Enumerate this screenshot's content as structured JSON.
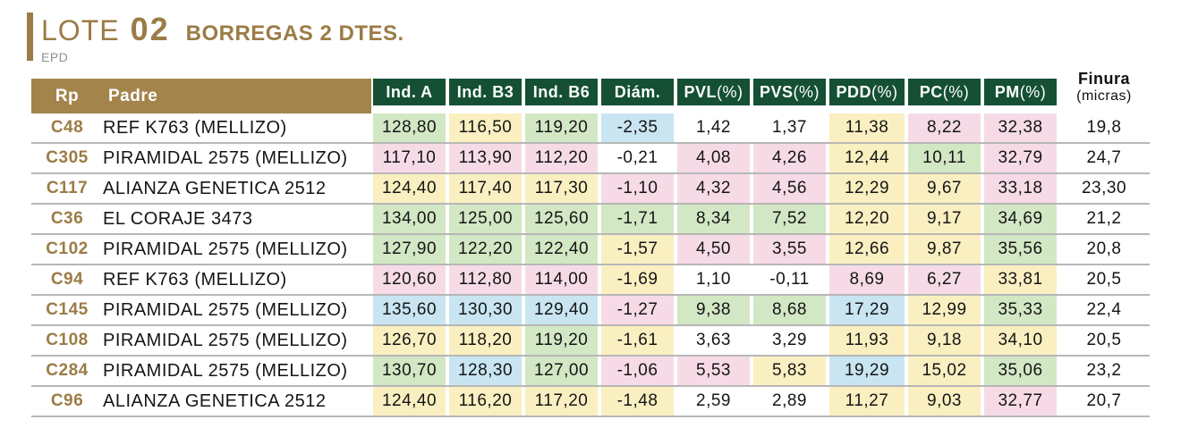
{
  "title": {
    "lote_label": "LOTE",
    "lote_number": "02",
    "subtitle": "BORREGAS 2 DTES.",
    "epd_label": "EPD"
  },
  "colors": {
    "bronze": "#9b7c46",
    "gold_header": "#a3854c",
    "dark_green_header": "#155034",
    "cell_green": "#d2e7c4",
    "cell_yellow": "#faefc1",
    "cell_pink": "#f6dbe7",
    "cell_blue": "#c8e5f1",
    "row_line": "#b7b7b7"
  },
  "table": {
    "headers": {
      "rp": "Rp",
      "padre": "Padre",
      "cols": [
        {
          "t": "Ind. A",
          "s": ""
        },
        {
          "t": "Ind. B3",
          "s": ""
        },
        {
          "t": "Ind. B6",
          "s": ""
        },
        {
          "t": "Diám.",
          "s": ""
        },
        {
          "t": "PVL",
          "s": "(%)"
        },
        {
          "t": "PVS",
          "s": "(%)"
        },
        {
          "t": "PDD",
          "s": "(%)"
        },
        {
          "t": "PC",
          "s": "(%)"
        },
        {
          "t": "PM",
          "s": "(%)"
        }
      ],
      "finura_line1": "Finura",
      "finura_line2": "(micras)"
    },
    "rows": [
      {
        "rp": "C48",
        "padre": "REF K763 (MELLIZO)",
        "values": [
          "128,80",
          "116,50",
          "119,20",
          "-2,35",
          "1,42",
          "1,37",
          "11,38",
          "8,22",
          "32,38"
        ],
        "colors": [
          "g",
          "y",
          "g",
          "b",
          "w",
          "w",
          "y",
          "p",
          "p"
        ],
        "finura": "19,8"
      },
      {
        "rp": "C305",
        "padre": "PIRAMIDAL 2575 (MELLIZO)",
        "values": [
          "117,10",
          "113,90",
          "112,20",
          "-0,21",
          "4,08",
          "4,26",
          "12,44",
          "10,11",
          "32,79"
        ],
        "colors": [
          "p",
          "p",
          "p",
          "w",
          "p",
          "p",
          "y",
          "g",
          "p"
        ],
        "finura": "24,7"
      },
      {
        "rp": "C117",
        "padre": "ALIANZA GENETICA 2512",
        "values": [
          "124,40",
          "117,40",
          "117,30",
          "-1,10",
          "4,32",
          "4,56",
          "12,29",
          "9,67",
          "33,18"
        ],
        "colors": [
          "y",
          "y",
          "y",
          "p",
          "p",
          "p",
          "y",
          "y",
          "p"
        ],
        "finura": "23,30"
      },
      {
        "rp": "C36",
        "padre": "EL CORAJE 3473",
        "values": [
          "134,00",
          "125,00",
          "125,60",
          "-1,71",
          "8,34",
          "7,52",
          "12,20",
          "9,17",
          "34,69"
        ],
        "colors": [
          "g",
          "g",
          "g",
          "g",
          "g",
          "g",
          "y",
          "y",
          "g"
        ],
        "finura": "21,2"
      },
      {
        "rp": "C102",
        "padre": "PIRAMIDAL 2575 (MELLIZO)",
        "values": [
          "127,90",
          "122,20",
          "122,40",
          "-1,57",
          "4,50",
          "3,55",
          "12,66",
          "9,87",
          "35,56"
        ],
        "colors": [
          "g",
          "g",
          "g",
          "y",
          "p",
          "p",
          "y",
          "y",
          "g"
        ],
        "finura": "20,8"
      },
      {
        "rp": "C94",
        "padre": "REF K763 (MELLIZO)",
        "values": [
          "120,60",
          "112,80",
          "114,00",
          "-1,69",
          "1,10",
          "-0,11",
          "8,69",
          "6,27",
          "33,81"
        ],
        "colors": [
          "p",
          "p",
          "p",
          "y",
          "w",
          "w",
          "p",
          "p",
          "y"
        ],
        "finura": "20,5"
      },
      {
        "rp": "C145",
        "padre": "PIRAMIDAL 2575 (MELLIZO)",
        "values": [
          "135,60",
          "130,30",
          "129,40",
          "-1,27",
          "9,38",
          "8,68",
          "17,29",
          "12,99",
          "35,33"
        ],
        "colors": [
          "b",
          "b",
          "b",
          "p",
          "g",
          "g",
          "b",
          "y",
          "g"
        ],
        "finura": "22,4"
      },
      {
        "rp": "C108",
        "padre": "PIRAMIDAL 2575 (MELLIZO)",
        "values": [
          "126,70",
          "118,20",
          "119,20",
          "-1,61",
          "3,63",
          "3,29",
          "11,93",
          "9,18",
          "34,10"
        ],
        "colors": [
          "y",
          "y",
          "g",
          "y",
          "w",
          "w",
          "y",
          "y",
          "y"
        ],
        "finura": "20,5"
      },
      {
        "rp": "C284",
        "padre": "PIRAMIDAL 2575 (MELLIZO)",
        "values": [
          "130,70",
          "128,30",
          "127,00",
          "-1,06",
          "5,53",
          "5,83",
          "19,29",
          "15,02",
          "35,06"
        ],
        "colors": [
          "g",
          "b",
          "g",
          "p",
          "p",
          "y",
          "b",
          "y",
          "g"
        ],
        "finura": "23,2"
      },
      {
        "rp": "C96",
        "padre": "ALIANZA GENETICA 2512",
        "values": [
          "124,40",
          "116,20",
          "117,20",
          "-1,48",
          "2,59",
          "2,89",
          "11,27",
          "9,03",
          "32,77"
        ],
        "colors": [
          "y",
          "y",
          "y",
          "y",
          "w",
          "w",
          "y",
          "y",
          "p"
        ],
        "finura": "20,7"
      }
    ]
  }
}
